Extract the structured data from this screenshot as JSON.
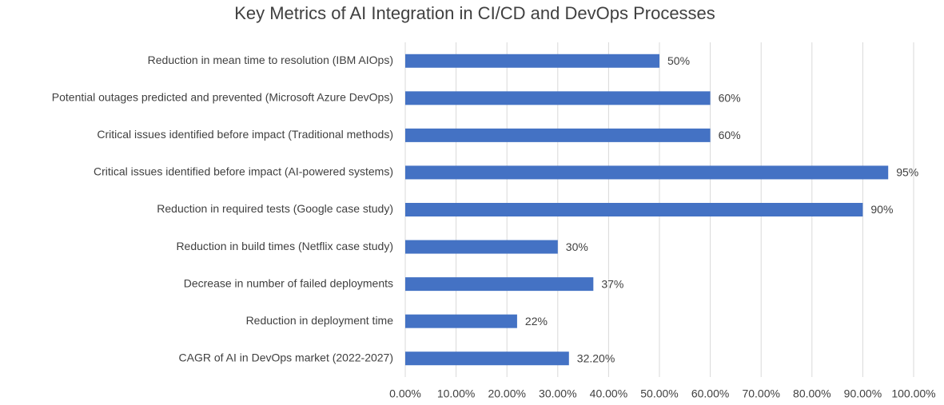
{
  "chart_data": {
    "type": "bar",
    "orientation": "horizontal",
    "title": "Key Metrics of AI Integration in CI/CD and DevOps Processes",
    "categories": [
      "Reduction in mean time to resolution (IBM AIOps)",
      "Potential outages predicted and prevented (Microsoft Azure DevOps)",
      "Critical issues identified before impact (Traditional methods)",
      "Critical issues identified before impact (AI-powered systems)",
      "Reduction in required tests (Google case study)",
      "Reduction in build times (Netflix case study)",
      "Decrease in number of failed deployments",
      "Reduction in deployment time",
      "CAGR of AI in DevOps market (2022-2027)"
    ],
    "values": [
      50,
      60,
      60,
      95,
      90,
      30,
      37,
      22,
      32.2
    ],
    "value_labels": [
      "50%",
      "60%",
      "60%",
      "95%",
      "90%",
      "30%",
      "37%",
      "22%",
      "32.20%"
    ],
    "color": "#4472c4",
    "xlim": [
      0,
      100
    ],
    "xticks": [
      {
        "value": 0,
        "label": "0.00%"
      },
      {
        "value": 10,
        "label": "10.00%"
      },
      {
        "value": 20,
        "label": "20.00%"
      },
      {
        "value": 30,
        "label": "30.00%"
      },
      {
        "value": 40,
        "label": "40.00%"
      },
      {
        "value": 50,
        "label": "50.00%"
      },
      {
        "value": 60,
        "label": "60.00%"
      },
      {
        "value": 70,
        "label": "70.00%"
      },
      {
        "value": 80,
        "label": "80.00%"
      },
      {
        "value": 90,
        "label": "90.00%"
      },
      {
        "value": 100,
        "label": "100.00%"
      }
    ],
    "grid": true
  }
}
